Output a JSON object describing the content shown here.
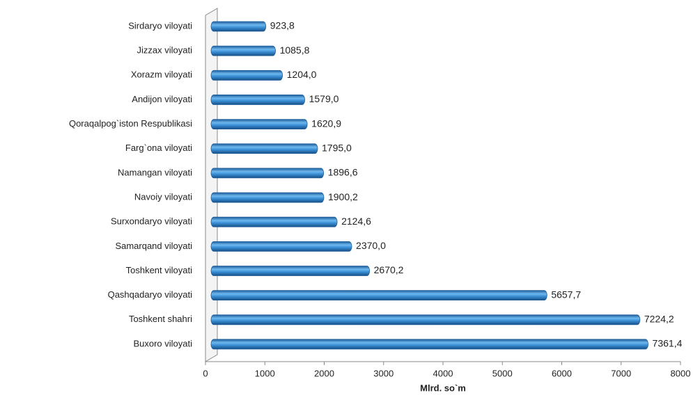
{
  "chart_data": {
    "type": "bar",
    "orientation": "horizontal",
    "xlabel": "Mlrd. so`m",
    "categories": [
      "Sirdaryo viloyati",
      "Jizzax viloyati",
      "Xorazm viloyati",
      "Andijon viloyati",
      "Qoraqalpog`iston Respublikasi",
      "Farg`ona viloyati",
      "Namangan viloyati",
      "Navoiy viloyati",
      "Surxondaryo viloyati",
      "Samarqand viloyati",
      "Toshkent viloyati",
      "Qashqadaryo viloyati",
      "Toshkent shahri",
      "Buxoro viloyati"
    ],
    "values": [
      923.8,
      1085.8,
      1204.0,
      1579.0,
      1620.9,
      1795.0,
      1896.6,
      1900.2,
      2124.6,
      2370.0,
      2670.2,
      5657.7,
      7224.2,
      7361.4
    ],
    "value_labels": [
      "923,8",
      "1085,8",
      "1204,0",
      "1579,0",
      "1620,9",
      "1795,0",
      "1896,6",
      "1900,2",
      "2124,6",
      "2370,0",
      "2670,2",
      "5657,7",
      "7224,2",
      "7361,4"
    ],
    "color": "#3a8fd6",
    "xlim": [
      0,
      8000
    ],
    "xticks": [
      0,
      1000,
      2000,
      3000,
      4000,
      5000,
      6000,
      7000,
      8000
    ],
    "grid": false
  }
}
